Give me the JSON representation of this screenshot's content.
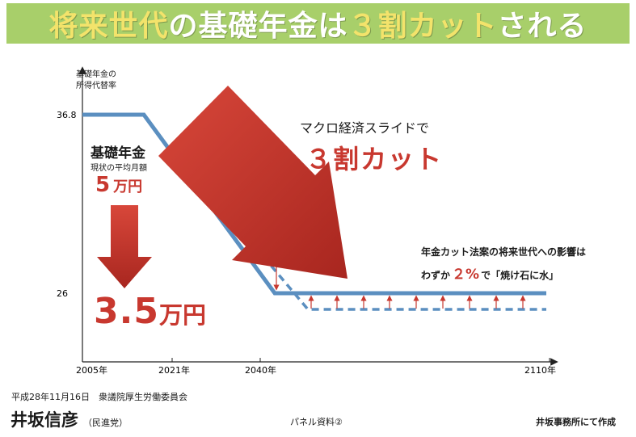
{
  "title": {
    "part1": "将来世代",
    "part2": "の基礎年金は",
    "part3": "３割カット",
    "part4": "される"
  },
  "ylabel_line1": "基礎年金の",
  "ylabel_line2": "所得代替率",
  "annotations": {
    "left_heading": "基礎年金",
    "left_sub": "現状の平均月額",
    "left_now_num": "5",
    "left_now_unit": "万円",
    "left_after_num": "3.5",
    "left_after_unit": "万円",
    "macro_label": "マクロ経済スライドで",
    "macro_cut": "３割カット",
    "bill_line1": "年金カット法案の将来世代への影響は",
    "bill_prefix": "わずか",
    "bill_pct": "２%",
    "bill_suffix": "で「焼け石に水」"
  },
  "footer": {
    "date_committee": "平成28年11月16日　衆議院厚生労働委員会",
    "name": "井坂信彦",
    "party": "（民進党）",
    "panel": "パネル資料②",
    "maker": "井坂事務所にて作成"
  },
  "colors": {
    "line": "#5b8fc0",
    "accent_red": "#c8382f",
    "title_bg": "#a8cf6a",
    "title_highlight": "#f3e36b"
  },
  "chart_data": {
    "type": "line",
    "x_ticks": [
      "2005年",
      "2021年",
      "2040年",
      "2110年"
    ],
    "y_ticks": [
      36.8,
      26.0
    ],
    "ylabel": "基礎年金の所得代替率",
    "series": [
      {
        "style": "solid",
        "points": [
          [
            "2005年",
            36.8
          ],
          [
            "2012年",
            36.8
          ],
          [
            "2040年",
            26.0
          ],
          [
            "2110年",
            26.0
          ]
        ]
      },
      {
        "style": "dashed",
        "points": [
          [
            "2021年",
            35.0
          ],
          [
            "2045年",
            25.2
          ],
          [
            "2110年",
            25.2
          ]
        ]
      }
    ],
    "arrows": [
      "down-red-big",
      "down-red-left",
      "up-red-small"
    ]
  }
}
